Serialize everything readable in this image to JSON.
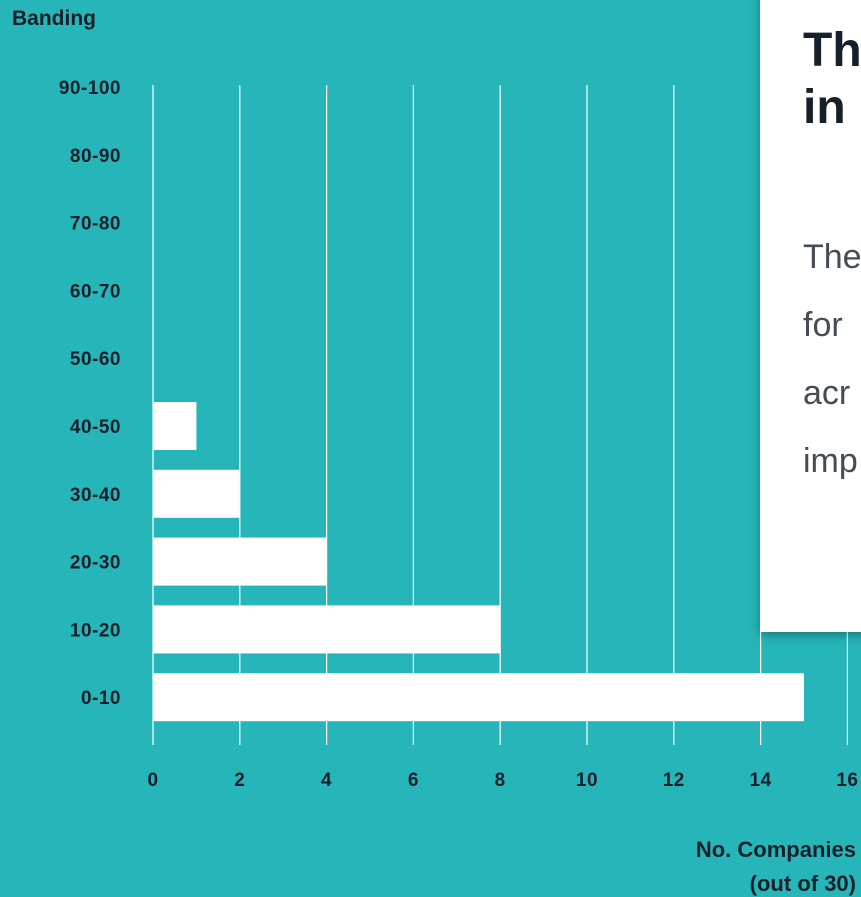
{
  "chart_data": {
    "type": "bar",
    "orientation": "horizontal",
    "ylabel": "Banding",
    "xlabel": [
      "No. Companies",
      "(out of 30)"
    ],
    "categories": [
      "90-100",
      "80-90",
      "70-80",
      "60-70",
      "50-60",
      "40-50",
      "30-40",
      "20-30",
      "10-20",
      "0-10"
    ],
    "values": [
      0,
      0,
      0,
      0,
      0,
      1,
      2,
      4,
      8,
      15
    ],
    "xticks": [
      0,
      2,
      4,
      6,
      8,
      10,
      12,
      14,
      16
    ],
    "xlim": [
      0,
      16
    ],
    "grid": true,
    "colors": {
      "background": "#26b6b9",
      "bar": "#ffffff",
      "gridline": "#ffffff",
      "text": "#16202a"
    }
  },
  "card": {
    "title_lines": [
      "Th",
      "in"
    ],
    "body_lines": [
      "The",
      "for",
      "acr",
      "imp"
    ]
  }
}
